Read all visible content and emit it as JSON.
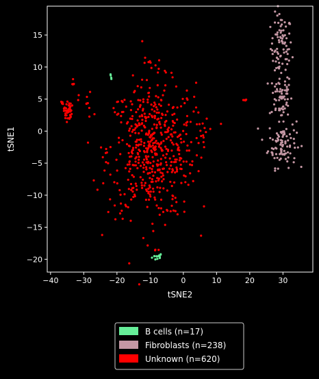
{
  "chart_data": {
    "type": "scatter",
    "xlabel": "tSNE2",
    "ylabel": "tSNE1",
    "xlim": [
      -41,
      39
    ],
    "ylim": [
      -22,
      19.5
    ],
    "x_ticks": [
      -40,
      -30,
      -20,
      -10,
      0,
      10,
      20,
      30
    ],
    "y_ticks": [
      -20,
      -15,
      -10,
      -5,
      0,
      5,
      10,
      15
    ],
    "x_tick_labels": [
      "−40",
      "−30",
      "−20",
      "−10",
      "0",
      "10",
      "20",
      "30"
    ],
    "y_tick_labels": [
      "−20",
      "−15",
      "−10",
      "−5",
      "0",
      "5",
      "10",
      "15"
    ],
    "grid": false,
    "legend_position": "bottom-center",
    "series": [
      {
        "name": "B cells (n=17)",
        "color": "#66ee99",
        "count": 17,
        "clusters": [
          {
            "cx": -21.8,
            "cy": 8.3,
            "sx": 0.3,
            "sy": 0.4,
            "n": 4
          },
          {
            "cx": -7.8,
            "cy": -19.6,
            "sx": 0.8,
            "sy": 0.3,
            "n": 13
          }
        ]
      },
      {
        "name": "Fibroblasts (n=238)",
        "color": "#c497a4",
        "count": 238,
        "clusters": [
          {
            "cx": 29.5,
            "cy": 13.0,
            "sx": 1.6,
            "sy": 2.6,
            "n": 85
          },
          {
            "cx": 29.3,
            "cy": 5.5,
            "sx": 1.7,
            "sy": 1.8,
            "n": 55
          },
          {
            "cx": 29.8,
            "cy": -1.8,
            "sx": 2.1,
            "sy": 1.9,
            "n": 98
          }
        ]
      },
      {
        "name": "Unknown (n=620)",
        "color": "#ff0000",
        "count": 620,
        "clusters": [
          {
            "cx": -9.5,
            "cy": -3.0,
            "sx": 6.6,
            "sy": 5.2,
            "n": 530
          },
          {
            "cx": -9.5,
            "cy": 10.5,
            "sx": 1.2,
            "sy": 0.5,
            "n": 8
          },
          {
            "cx": -34.8,
            "cy": 3.2,
            "sx": 0.6,
            "sy": 0.8,
            "n": 40
          },
          {
            "cx": -33.3,
            "cy": 7.5,
            "sx": 0.3,
            "sy": 0.6,
            "n": 5
          },
          {
            "cx": -29.5,
            "cy": 4.5,
            "sx": 1.0,
            "sy": 0.8,
            "n": 8
          },
          {
            "cx": -36.5,
            "cy": 4.5,
            "sx": 0.4,
            "sy": 0.3,
            "n": 4
          },
          {
            "cx": 18.5,
            "cy": 4.8,
            "sx": 0.5,
            "sy": 0.05,
            "n": 5
          },
          {
            "cx": -8.0,
            "cy": -18.6,
            "sx": 0.4,
            "sy": 0.1,
            "n": 3
          },
          {
            "cx": 5.0,
            "cy": 0.5,
            "sx": 1.8,
            "sy": 3.0,
            "n": 17
          }
        ]
      }
    ]
  }
}
